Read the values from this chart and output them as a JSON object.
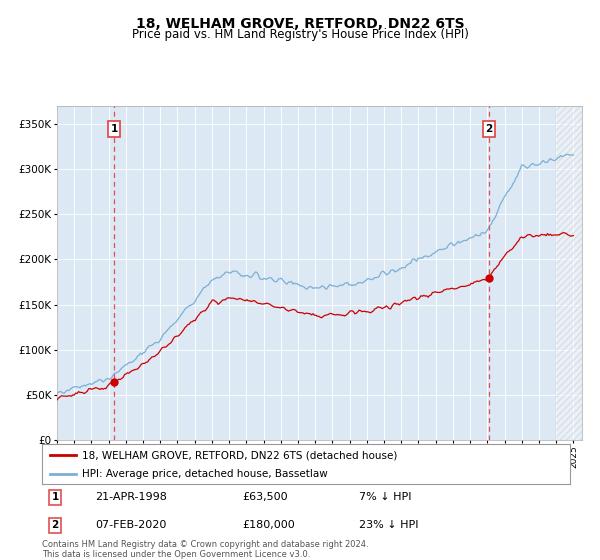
{
  "title": "18, WELHAM GROVE, RETFORD, DN22 6TS",
  "subtitle": "Price paid vs. HM Land Registry's House Price Index (HPI)",
  "ylim": [
    0,
    370000
  ],
  "yticks": [
    0,
    50000,
    100000,
    150000,
    200000,
    250000,
    300000,
    350000
  ],
  "ytick_labels": [
    "£0",
    "£50K",
    "£100K",
    "£150K",
    "£200K",
    "£250K",
    "£300K",
    "£350K"
  ],
  "plot_bg_color": "#dce9f5",
  "fig_bg_color": "#ffffff",
  "hpi_color": "#7bafd4",
  "price_color": "#cc0000",
  "dashed_color": "#e05050",
  "title_fontsize": 10,
  "subtitle_fontsize": 8.5,
  "legend_label_1": "18, WELHAM GROVE, RETFORD, DN22 6TS (detached house)",
  "legend_label_2": "HPI: Average price, detached house, Bassetlaw",
  "annotation_1_date": "21-APR-1998",
  "annotation_1_price": "£63,500",
  "annotation_1_hpi": "7% ↓ HPI",
  "annotation_2_date": "07-FEB-2020",
  "annotation_2_price": "£180,000",
  "annotation_2_hpi": "23% ↓ HPI",
  "footnote": "Contains HM Land Registry data © Crown copyright and database right 2024.\nThis data is licensed under the Open Government Licence v3.0.",
  "sale1_year": 1998.31,
  "sale1_price": 63500,
  "sale2_year": 2020.09,
  "sale2_price": 180000,
  "xmin": 1995,
  "xmax": 2025.5
}
